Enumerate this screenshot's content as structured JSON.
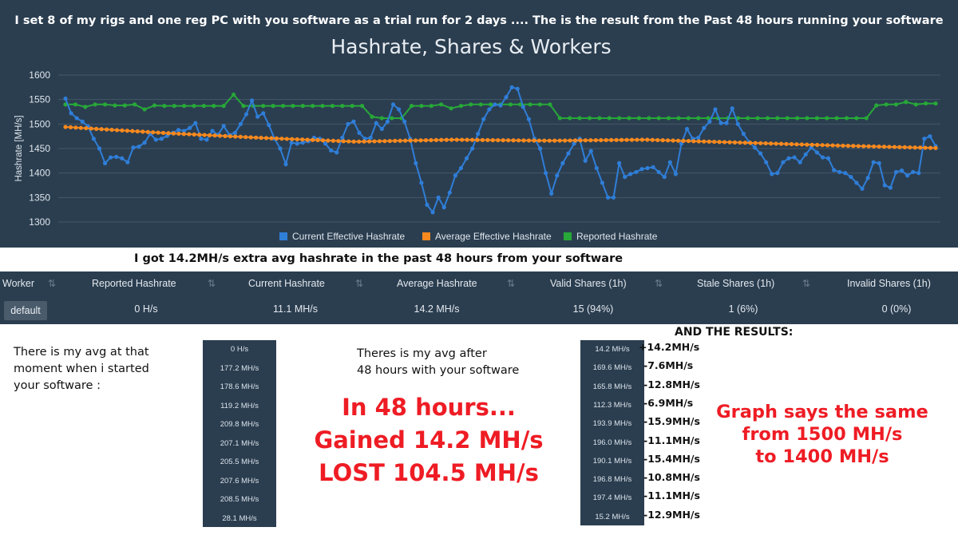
{
  "banner": {
    "text": "I set 8 of my rigs and one reg PC  with you software as a trial run for 2 days  .... The is the result from the Past 48 hours running your software"
  },
  "chart_data": {
    "type": "line",
    "title": "Hashrate, Shares & Workers",
    "ylabel": "Hashrate [MH/s]",
    "ylim": [
      1300,
      1600
    ],
    "yticks": [
      "1600",
      "1550",
      "1500",
      "1450",
      "1400",
      "1350",
      "1300"
    ],
    "grid": true,
    "legend_position": "bottom",
    "series": [
      {
        "name": "Current Effective Hashrate",
        "color": "#2f7ed8",
        "values": [
          1552,
          1522,
          1512,
          1505,
          1495,
          1470,
          1450,
          1420,
          1432,
          1433,
          1430,
          1422,
          1452,
          1454,
          1462,
          1480,
          1468,
          1470,
          1476,
          1482,
          1488,
          1486,
          1492,
          1502,
          1470,
          1468,
          1486,
          1478,
          1496,
          1478,
          1482,
          1500,
          1520,
          1548,
          1515,
          1522,
          1498,
          1470,
          1450,
          1418,
          1462,
          1460,
          1462,
          1465,
          1472,
          1470,
          1460,
          1446,
          1442,
          1472,
          1500,
          1505,
          1482,
          1470,
          1472,
          1502,
          1490,
          1505,
          1540,
          1530,
          1505,
          1470,
          1420,
          1380,
          1335,
          1320,
          1350,
          1330,
          1360,
          1395,
          1410,
          1430,
          1450,
          1480,
          1510,
          1530,
          1540,
          1538,
          1555,
          1575,
          1572,
          1535,
          1510,
          1470,
          1450,
          1400,
          1358,
          1395,
          1420,
          1440,
          1460,
          1470,
          1425,
          1445,
          1410,
          1380,
          1350,
          1350,
          1420,
          1392,
          1398,
          1402,
          1408,
          1410,
          1412,
          1402,
          1392,
          1422,
          1398,
          1460,
          1490,
          1470,
          1472,
          1492,
          1505,
          1530,
          1502,
          1502,
          1532,
          1500,
          1480,
          1463,
          1452,
          1440,
          1422,
          1398,
          1400,
          1422,
          1430,
          1432,
          1422,
          1438,
          1452,
          1442,
          1432,
          1430,
          1406,
          1402,
          1400,
          1392,
          1380,
          1368,
          1390,
          1422,
          1420,
          1375,
          1370,
          1402,
          1405,
          1395,
          1402,
          1400,
          1470,
          1475,
          1455
        ]
      },
      {
        "name": "Average Effective Hashrate",
        "color": "#f7891e",
        "values": [
          1494,
          1482,
          1472,
          1464,
          1468,
          1466,
          1468,
          1462,
          1456,
          1451
        ]
      },
      {
        "name": "Reported Hashrate",
        "color": "#27a838",
        "values": [
          1540,
          1540,
          1535,
          1540,
          1540,
          1538,
          1538,
          1540,
          1530,
          1538,
          1537,
          1537,
          1537,
          1537,
          1537,
          1537,
          1537,
          1560,
          1537,
          1537,
          1537,
          1537,
          1537,
          1537,
          1537,
          1537,
          1537,
          1537,
          1537,
          1537,
          1537,
          1515,
          1512,
          1512,
          1512,
          1537,
          1537,
          1537,
          1540,
          1532,
          1537,
          1540,
          1540,
          1540,
          1540,
          1540,
          1540,
          1540,
          1540,
          1540,
          1512,
          1512,
          1512,
          1512,
          1512,
          1512,
          1512,
          1512,
          1512,
          1512,
          1512,
          1512,
          1512,
          1512,
          1512,
          1512,
          1512,
          1512,
          1512,
          1512,
          1512,
          1512,
          1512,
          1512,
          1512,
          1512,
          1512,
          1512,
          1512,
          1512,
          1512,
          1512,
          1538,
          1540,
          1540,
          1545,
          1540,
          1542,
          1542
        ]
      }
    ]
  },
  "extra_note": "I got 14.2MH/s extra avg hashrate in the past 48 hours from your software",
  "worker_table": {
    "headers": [
      "Worker",
      "Reported Hashrate",
      "Current Hashrate",
      "Average Hashrate",
      "Valid Shares (1h)",
      "Stale Shares (1h)",
      "Invalid Shares (1h)"
    ],
    "row": {
      "worker": "default",
      "reported": "0 H/s",
      "current": "11.1 MH/s",
      "average": "14.2 MH/s",
      "valid": "15 (94%)",
      "stale": "1 (6%)",
      "invalid": "0 (0%)"
    }
  },
  "notes": {
    "left": [
      "There is my avg at that",
      "moment when i started",
      "your software :"
    ],
    "middle": [
      "Theres is my avg after",
      "48 hours with your software"
    ],
    "results_heading": "AND THE RESULTS:"
  },
  "before_values": [
    "0 H/s",
    "177.2 MH/s",
    "178.6 MH/s",
    "119.2 MH/s",
    "209.8 MH/s",
    "207.1 MH/s",
    "205.5 MH/s",
    "207.6 MH/s",
    "208.5 MH/s",
    "28.1 MH/s"
  ],
  "after_values": [
    "14.2 MH/s",
    "169.6 MH/s",
    "165.8 MH/s",
    "112.3 MH/s",
    "193.9 MH/s",
    "196.0 MH/s",
    "190.1 MH/s",
    "196.8 MH/s",
    "197.4 MH/s",
    "15.2 MH/s"
  ],
  "deltas": [
    "+14.2MH/s",
    "-7.6MH/s",
    "-12.8MH/s",
    "-6.9MH/s",
    "-15.9MH/s",
    "-11.1MH/s",
    "-15.4MH/s",
    "-10.8MH/s",
    "-11.1MH/s",
    "-12.9MH/s"
  ],
  "summary_center": [
    "In 48 hours...",
    "Gained 14.2 MH/s",
    "LOST 104.5 MH/s"
  ],
  "summary_right": [
    "Graph says the same",
    "from 1500 MH/s",
    "to 1400 MH/s"
  ],
  "colors": {
    "background_dark": "#2b3e50",
    "summary_red": "#ee1c24"
  }
}
